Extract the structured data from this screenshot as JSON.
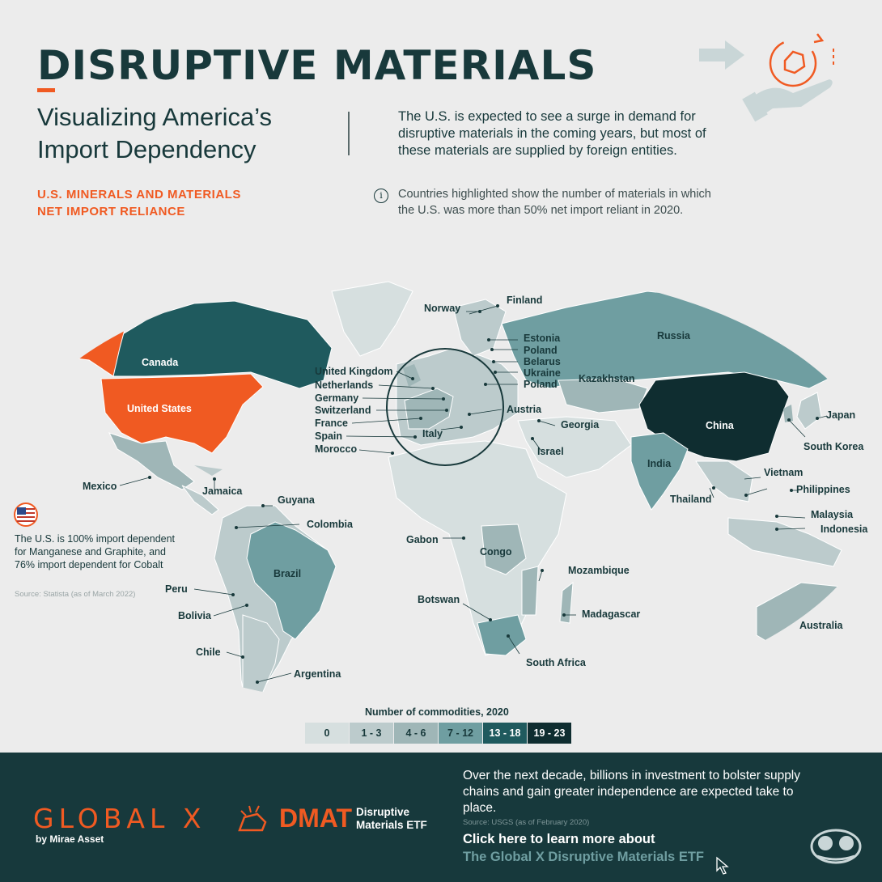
{
  "header": {
    "title": "DISRUPTIVE MATERIALS",
    "subtitle_line1": "Visualizing America’s",
    "subtitle_line2": "Import Dependency",
    "intro": "The U.S. is expected to see a surge in demand for disruptive materials in the coming years, but most of these materials are supplied by foreign entities.",
    "metric_title_line1": "U.S. MINERALS AND MATERIALS",
    "metric_title_line2": "NET IMPORT RELIANCE",
    "info_icon": "info-icon",
    "note": "Countries highlighted show the number of materials in which the U.S. was more than 50% net import reliant in 2020."
  },
  "map": {
    "labels": {
      "canada": "Canada",
      "united_states": "United States",
      "mexico": "Mexico",
      "jamaica": "Jamaica",
      "guyana": "Guyana",
      "colombia": "Colombia",
      "brazil": "Brazil",
      "peru": "Peru",
      "bolivia": "Bolivia",
      "chile": "Chile",
      "argentina": "Argentina",
      "norway": "Norway",
      "finland": "Finland",
      "estonia": "Estonia",
      "poland1": "Poland",
      "belarus": "Belarus",
      "ukraine": "Ukraine",
      "poland2": "Poland",
      "united_kingdom": "United Kingdom",
      "netherlands": "Netherlands",
      "germany": "Germany",
      "switzerland": "Switzerland",
      "france": "France",
      "spain": "Spain",
      "morocco": "Morocco",
      "austria": "Austria",
      "italy": "Italy",
      "russia": "Russia",
      "kazakhstan": "Kazakhstan",
      "georgia": "Georgia",
      "israel": "Israel",
      "china": "China",
      "india": "India",
      "japan": "Japan",
      "south_korea": "South Korea",
      "vietnam": "Vietnam",
      "thailand": "Thailand",
      "philippines": "Philippines",
      "malaysia": "Malaysia",
      "indonesia": "Indonesia",
      "australia": "Australia",
      "gabon": "Gabon",
      "congo": "Congo",
      "mozambique": "Mozambique",
      "botswana": "Botswan",
      "madagascar": "Madagascar",
      "south_africa": "South Africa"
    },
    "country_levels": {
      "United States": "highlight",
      "Canada": "13 - 18",
      "China": "19 - 23",
      "Russia": "7 - 12",
      "Brazil": "7 - 12",
      "India": "7 - 12",
      "South Africa": "7 - 12",
      "Australia": "4 - 6",
      "Mexico": "4 - 6"
    },
    "colors": {
      "us_highlight": "#f05a22",
      "level_0": "#d6dfdf",
      "level_1_3": "#bccbcc",
      "level_4_6": "#9fb6b7",
      "level_7_12": "#6f9ea1",
      "level_13_18": "#1f5a5e",
      "level_19_23": "#0f2d30"
    }
  },
  "side_note": {
    "flag_icon": "us-flag-icon",
    "text": "The U.S. is 100% import dependent for Manganese and Graphite, and 76% import dependent for Cobalt",
    "source": "Source: Statista (as of March 2022)"
  },
  "legend": {
    "title": "Number of commodities, 2020",
    "items": [
      {
        "label": "0",
        "color": "#d6dfdf",
        "text_color": "#18393b"
      },
      {
        "label": "1 - 3",
        "color": "#bccbcc",
        "text_color": "#18393b"
      },
      {
        "label": "4 - 6",
        "color": "#9fb6b7",
        "text_color": "#18393b"
      },
      {
        "label": "7 - 12",
        "color": "#6f9ea1",
        "text_color": "#18393b"
      },
      {
        "label": "13 - 18",
        "color": "#1f5a5e",
        "text_color": "#ffffff"
      },
      {
        "label": "19 - 23",
        "color": "#0f2d30",
        "text_color": "#ffffff"
      }
    ]
  },
  "footer": {
    "globalx_logo": "GLOBAL X",
    "globalx_by": "by Mirae Asset",
    "dmat_logo": "DMAT",
    "dmat_sub": "Disruptive Materials ETF",
    "text": "Over the next decade, billions in investment to bolster supply chains and gain greater independence are expected take to place.",
    "source": "Source: USGS (as of February 2020)",
    "cta_line1": "Click here to learn more about",
    "cta_line2": "The Global X Disruptive Materials ETF",
    "cursor_icon": "cursor-icon",
    "vc_logo": "visual-capitalist-logo-icon"
  }
}
